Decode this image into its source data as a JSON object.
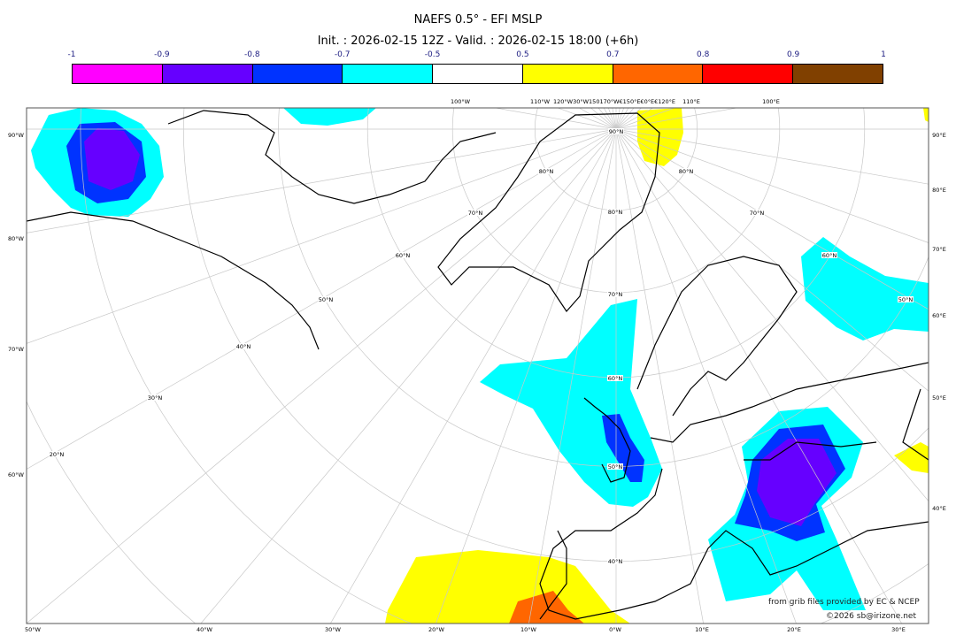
{
  "title": "NAEFS 0.5° - EFI MSLP",
  "subtitle": "Init. : 2026-02-15 12Z - Valid. : 2026-02-15 18:00 (+6h)",
  "colorbar": {
    "ticks": [
      "-1",
      "-0.9",
      "-0.8",
      "-0.7",
      "-0.5",
      "0.5",
      "0.7",
      "0.8",
      "0.9",
      "1"
    ],
    "colors": [
      "#ff00ff",
      "#6600ff",
      "#0033ff",
      "#00ffff",
      "#ffffff",
      "#ffff00",
      "#ff6600",
      "#ff0000",
      "#804000"
    ]
  },
  "map": {
    "projection": "polar stereographic",
    "bottom_labels": [
      "50°W",
      "40°W",
      "30°W",
      "20°W",
      "10°W",
      "0°W",
      "10°E",
      "20°E",
      "30°E"
    ],
    "left_labels": [
      "90°W",
      "80°W",
      "70°W",
      "60°W"
    ],
    "right_labels": [
      "90°E",
      "80°E",
      "70°E",
      "60°E",
      "50°E",
      "40°E"
    ],
    "top_labels": [
      "100°W",
      "110°W",
      "120°W30°W150170°W€150°E€0°E€120°E",
      "110°E",
      "100°E"
    ],
    "lat_labels": [
      "90°N",
      "80°N",
      "80°N",
      "80°N",
      "70°N",
      "70°N",
      "70°N",
      "60°N",
      "60°N",
      "60°N",
      "50°N",
      "50°N",
      "50°N",
      "40°N",
      "40°N",
      "30°N",
      "20°N"
    ],
    "efi_fields": {
      "alaska": "-0.9 to -1",
      "central_europe_balkans": "-0.9 to -1",
      "uk_north_sea": "-0.8 to -0.9",
      "iberia_atlantic": "0.5 to 0.8",
      "near_pole": "0.5 to 0.7",
      "siberia": "-0.5 to -0.7"
    }
  },
  "credits": {
    "source": "from grib files provided by EC & NCEP",
    "copyright": "©2026 sb@irizone.net"
  }
}
